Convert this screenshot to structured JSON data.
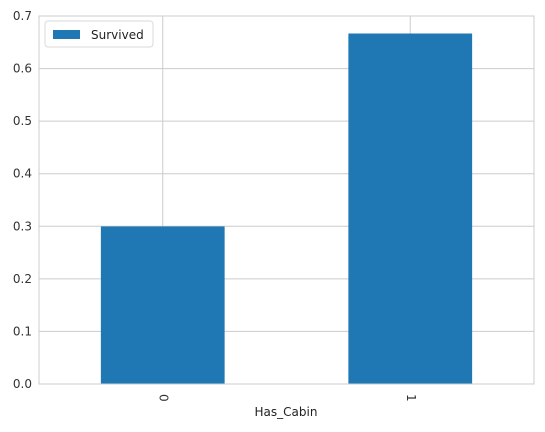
{
  "chart_data": {
    "type": "bar",
    "categories": [
      "0",
      "1"
    ],
    "series": [
      {
        "name": "Survived",
        "values": [
          0.2997,
          0.6667
        ],
        "color": "#1f77b4"
      }
    ],
    "xlabel": "Has_Cabin",
    "ylabel": "",
    "ylim": [
      0,
      0.7
    ],
    "yticks": [
      "0.0",
      "0.1",
      "0.2",
      "0.3",
      "0.4",
      "0.5",
      "0.6",
      "0.7"
    ],
    "grid": true,
    "legend_position": "top-left",
    "x_tick_rotation": "vertical"
  }
}
